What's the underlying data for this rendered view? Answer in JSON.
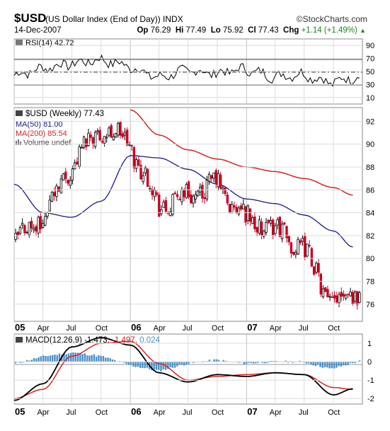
{
  "header": {
    "symbol": "$USD",
    "name": "(US Dollar Index (End of Day)) INDX",
    "brand": "StockCharts.com",
    "date": "14-Dec-2007",
    "open_label": "Op",
    "open": "76.29",
    "high_label": "Hi",
    "high": "77.49",
    "low_label": "Lo",
    "low": "75.92",
    "close_label": "Cl",
    "close": "77.43",
    "change_label": "Chg",
    "change": "+1.14 (+1.49%)"
  },
  "colors": {
    "price_up": "#000000",
    "price_down": "#cc0022",
    "ma50": "#1a1a8a",
    "ma200": "#dd2222",
    "rsi_line": "#000000",
    "macd_line": "#000000",
    "signal_line": "#dd2222",
    "histogram": "#4a90c8",
    "grid": "#dcdcdc"
  },
  "chart_data": [
    {
      "type": "line",
      "title": "RSI(14) 42.72",
      "series_label": "RSI(14)",
      "series_value": "42.72",
      "yticks": [
        "90",
        "70",
        "50",
        "30",
        "10"
      ],
      "ylim": [
        0,
        100
      ],
      "reference_lines": [
        70,
        50,
        30
      ],
      "x": [
        "2005-01-07",
        "2005-04-01",
        "2005-07-01",
        "2005-10-01",
        "2006-01-01",
        "2006-04-01",
        "2006-07-01",
        "2006-10-01",
        "2007-01-01",
        "2007-04-01",
        "2007-07-01",
        "2007-10-01",
        "2007-12-14"
      ],
      "values": [
        44,
        55,
        62,
        68,
        58,
        40,
        52,
        47,
        54,
        42,
        46,
        33,
        43
      ]
    },
    {
      "type": "line",
      "title": "$USD (Weekly) 77.43",
      "price_label": "$USD (Weekly)",
      "price_value": "77.43",
      "ma50_label": "MA(50)",
      "ma50_value": "81.00",
      "ma200_label": "MA(200)",
      "ma200_value": "85.54",
      "volume_label": "Volume undef",
      "yticks": [
        "92",
        "90",
        "88",
        "86",
        "84",
        "82",
        "80",
        "78",
        "76"
      ],
      "ylim": [
        74.5,
        93.2
      ],
      "xticks": [
        "05",
        "Apr",
        "Jul",
        "Oct",
        "06",
        "Apr",
        "Jul",
        "Oct",
        "07",
        "Apr",
        "Jul",
        "Oct"
      ],
      "x": [
        "2005-01",
        "2005-04",
        "2005-07",
        "2005-10",
        "2006-01",
        "2006-04",
        "2006-07",
        "2006-10",
        "2007-01",
        "2007-04",
        "2007-07",
        "2007-10",
        "2007-12"
      ],
      "series": [
        {
          "name": "$USD (Weekly)",
          "values": [
            81.5,
            83.8,
            88.5,
            91.5,
            90.0,
            84.5,
            85.5,
            86.5,
            83.5,
            82.5,
            81.0,
            76.2,
            77.43
          ]
        },
        {
          "name": "MA(50)",
          "values": [
            86.5,
            84.0,
            83.6,
            85.0,
            89.0,
            88.8,
            87.8,
            86.5,
            85.2,
            84.8,
            83.8,
            82.4,
            81.0
          ]
        },
        {
          "name": "MA(200)",
          "values": [
            null,
            null,
            null,
            null,
            93.0,
            90.8,
            89.5,
            88.7,
            88.0,
            87.6,
            87.0,
            86.2,
            85.54
          ]
        }
      ]
    },
    {
      "type": "line",
      "title": "MACD(12,26,9) -1.473, -1.497, 0.024",
      "macd_label": "MACD(12,26,9)",
      "macd_value": "-1.473,",
      "signal_value": "-1.497,",
      "hist_value": "0.024",
      "yticks": [
        "1",
        "0",
        "-1",
        "-2"
      ],
      "ylim": [
        -2.3,
        1.5
      ],
      "xticks": [
        "05",
        "Apr",
        "Jul",
        "Oct",
        "06",
        "Apr",
        "Jul",
        "Oct",
        "07",
        "Apr",
        "Jul",
        "Oct"
      ],
      "x": [
        "2005-01",
        "2005-04",
        "2005-07",
        "2005-10",
        "2006-01",
        "2006-04",
        "2006-07",
        "2006-10",
        "2007-01",
        "2007-04",
        "2007-07",
        "2007-10",
        "2007-12"
      ],
      "series": [
        {
          "name": "MACD",
          "values": [
            -2.1,
            -1.2,
            0.8,
            1.3,
            0.9,
            -0.6,
            -1.1,
            -0.7,
            -0.8,
            -0.6,
            -0.7,
            -1.8,
            -1.47
          ]
        },
        {
          "name": "Signal",
          "values": [
            -2.0,
            -1.5,
            0.3,
            1.0,
            1.1,
            -0.1,
            -1.0,
            -0.8,
            -0.7,
            -0.6,
            -0.7,
            -1.4,
            -1.5
          ]
        },
        {
          "name": "Histogram",
          "values": [
            -0.1,
            0.3,
            0.5,
            0.3,
            -0.2,
            -0.5,
            -0.1,
            0.1,
            -0.1,
            0.0,
            0.0,
            -0.4,
            0.024
          ]
        }
      ]
    }
  ]
}
